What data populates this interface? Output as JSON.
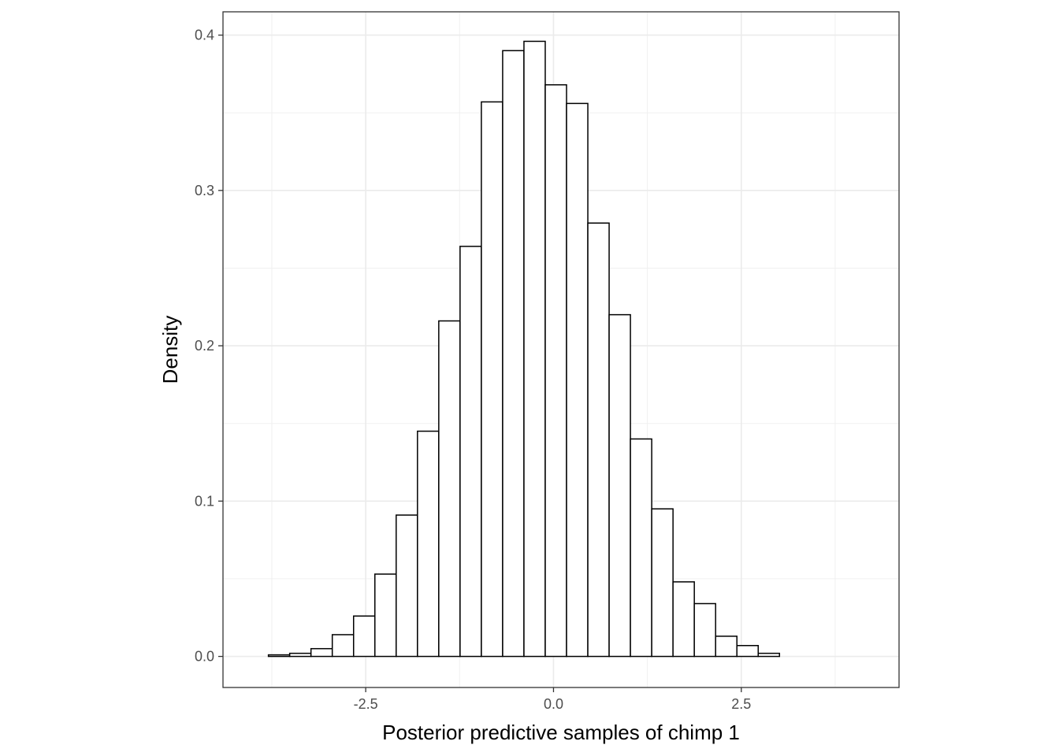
{
  "chart_data": {
    "type": "bar",
    "subtype": "histogram",
    "title": "",
    "xlabel": "Posterior predictive samples of chimp 1",
    "ylabel": "Density",
    "xlim": [
      -4.4,
      4.6
    ],
    "ylim": [
      -0.02,
      0.415
    ],
    "xticks": [
      -2.5,
      0.0,
      2.5
    ],
    "xtick_labels": [
      "-2.5",
      "0.0",
      "2.5"
    ],
    "yticks": [
      0.0,
      0.1,
      0.2,
      0.3,
      0.4
    ],
    "ytick_labels": [
      "0.0",
      "0.1",
      "0.2",
      "0.3",
      "0.4"
    ],
    "grid": true,
    "bin_width": 0.2835,
    "bin_start": -4.3625,
    "bins_left": [
      -4.3625,
      -4.079,
      -3.7955,
      -3.512,
      -3.2285,
      -2.945,
      -2.6615,
      -2.378,
      -2.0945,
      -1.811,
      -1.5275,
      -1.244,
      -0.9605,
      -0.677,
      -0.3935,
      -0.11,
      0.1735,
      0.457,
      0.7405,
      1.024,
      1.3075,
      1.591,
      1.8745,
      2.158,
      2.4415,
      2.725,
      3.0085,
      3.292,
      3.5755,
      3.859
    ],
    "values": [
      0.0,
      0.0,
      0.001,
      0.002,
      0.005,
      0.014,
      0.026,
      0.053,
      0.091,
      0.145,
      0.216,
      0.264,
      0.357,
      0.39,
      0.396,
      0.368,
      0.356,
      0.279,
      0.22,
      0.14,
      0.095,
      0.048,
      0.034,
      0.013,
      0.007,
      0.002,
      0.0,
      0.0,
      0.0,
      0.0
    ],
    "fill": "#ffffff",
    "stroke": "#000000"
  }
}
